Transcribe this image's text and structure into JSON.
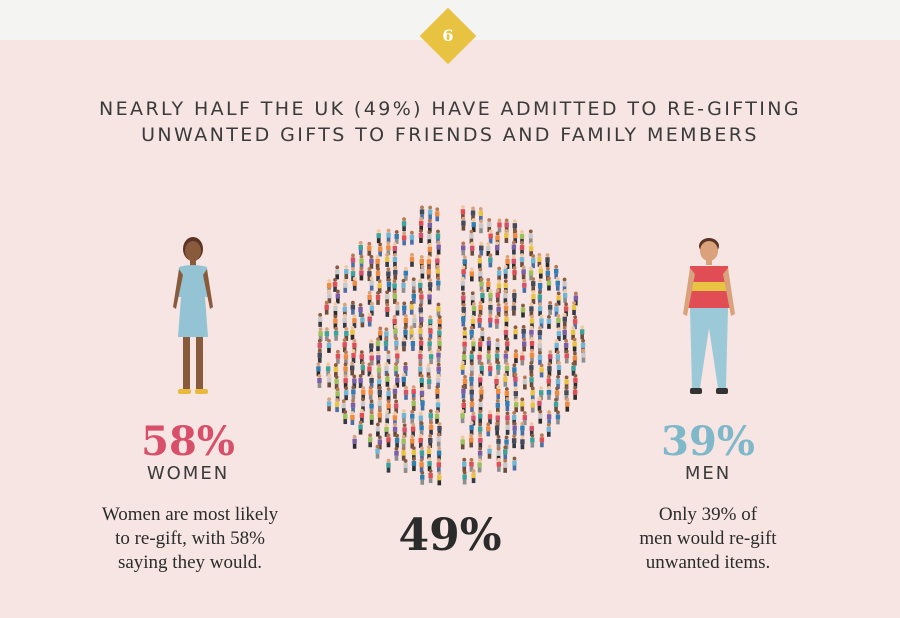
{
  "badge": {
    "number": "6",
    "color": "#e8c341"
  },
  "headline": {
    "line1": "NEARLY HALF THE UK (49%) HAVE ADMITTED TO RE-GIFTING",
    "line2": "UNWANTED GIFTS TO FRIENDS AND FAMILY MEMBERS"
  },
  "women": {
    "percent": "58%",
    "label": "WOMEN",
    "desc_lines": [
      "Women are most likely",
      "to re-gift, with 58%",
      "saying they would."
    ],
    "color": "#d84f6a",
    "icon": "woman-figure-icon"
  },
  "men": {
    "percent": "39%",
    "label": "MEN",
    "desc_lines": [
      "Only 39% of",
      "men would re-gift",
      "unwanted items."
    ],
    "color": "#7fb8c9",
    "icon": "man-figure-icon"
  },
  "overall": {
    "percent": "49%",
    "illustration": "crowd-circle-icon"
  },
  "colors": {
    "background": "#f6e5e3",
    "top_band": "#f4f4f2"
  }
}
